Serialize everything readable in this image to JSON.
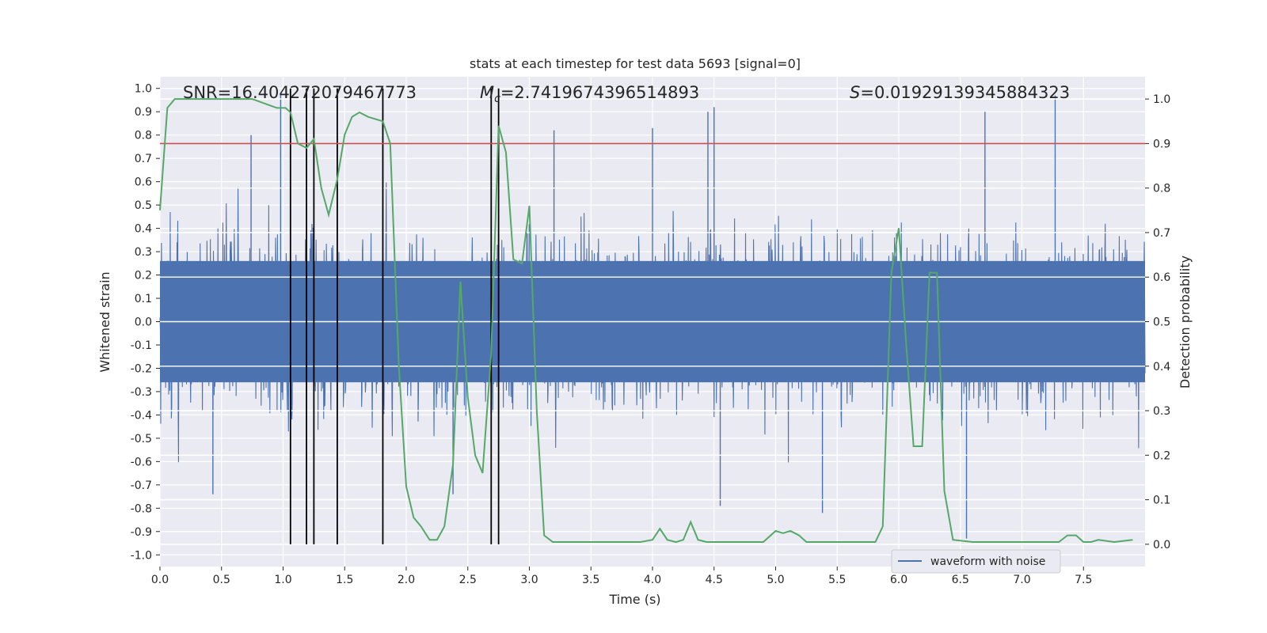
{
  "chart_data": {
    "type": "line",
    "title": "stats at each timestep for test data 5693 [signal=0]",
    "xlabel": "Time (s)",
    "ylabel_left": "Whitened strain",
    "ylabel_right": "Detection probability",
    "xlim": [
      0.0,
      8.0
    ],
    "ylim_left": [
      -1.05,
      1.05
    ],
    "ylim_right": [
      -0.05,
      1.05
    ],
    "x_ticks": [
      "0.0",
      "0.5",
      "1.0",
      "1.5",
      "2.0",
      "2.5",
      "3.0",
      "3.5",
      "4.0",
      "4.5",
      "5.0",
      "5.5",
      "6.0",
      "6.5",
      "7.0",
      "7.5"
    ],
    "y_ticks_left": [
      "-1.0",
      "-0.9",
      "-0.8",
      "-0.7",
      "-0.6",
      "-0.5",
      "-0.4",
      "-0.3",
      "-0.2",
      "-0.1",
      "0.0",
      "0.1",
      "0.2",
      "0.3",
      "0.4",
      "0.5",
      "0.6",
      "0.7",
      "0.8",
      "0.9",
      "1.0"
    ],
    "y_ticks_right": [
      "0.0",
      "0.1",
      "0.2",
      "0.3",
      "0.4",
      "0.5",
      "0.6",
      "0.7",
      "0.8",
      "0.9",
      "1.0"
    ],
    "grid": true,
    "legend_position": "lower-right",
    "annotations": {
      "snr": "SNR=16.404272079467773",
      "mc_symbol": "M",
      "mc_sub": "c",
      "mc_value": "=2.7419674396514893",
      "s_symbol": "S",
      "s_value": "=0.01929139345884323"
    },
    "threshold_right": 0.9,
    "event_times": [
      1.06,
      1.19,
      1.25,
      1.44,
      1.81,
      2.69,
      2.75
    ],
    "series": [
      {
        "name": "waveform with noise",
        "color": "#4c72b0",
        "x_range": [
          0.0,
          8.0
        ],
        "envelope": {
          "typical_amplitude": 0.42,
          "peak_amplitude": 0.98,
          "min_value": -0.93
        },
        "peaks": [
          {
            "x": 0.98,
            "y": 0.98
          },
          {
            "x": 1.81,
            "y": 0.93
          },
          {
            "x": 2.69,
            "y": 0.76
          },
          {
            "x": 3.2,
            "y": 0.82
          },
          {
            "x": 4.0,
            "y": 0.83
          },
          {
            "x": 4.45,
            "y": 0.9
          },
          {
            "x": 4.5,
            "y": 0.92
          },
          {
            "x": 6.7,
            "y": 0.9
          },
          {
            "x": 7.27,
            "y": 0.97
          },
          {
            "x": 0.74,
            "y": 0.8
          },
          {
            "x": 6.55,
            "y": -0.93
          },
          {
            "x": 2.38,
            "y": -0.74
          },
          {
            "x": 0.43,
            "y": -0.74
          },
          {
            "x": 5.38,
            "y": -0.82
          },
          {
            "x": 4.55,
            "y": -0.79
          }
        ]
      },
      {
        "name": "detection probability",
        "color": "#55a868",
        "axis": "right",
        "x": [
          0.0,
          0.06,
          0.12,
          0.3,
          0.6,
          0.75,
          0.85,
          0.95,
          1.02,
          1.06,
          1.12,
          1.19,
          1.25,
          1.31,
          1.37,
          1.44,
          1.5,
          1.56,
          1.62,
          1.69,
          1.81,
          1.87,
          1.94,
          2.0,
          2.06,
          2.12,
          2.19,
          2.25,
          2.31,
          2.38,
          2.44,
          2.5,
          2.56,
          2.62,
          2.69,
          2.75,
          2.81,
          2.87,
          2.94,
          3.0,
          3.06,
          3.12,
          3.19,
          3.3,
          3.5,
          3.7,
          3.9,
          4.0,
          4.06,
          4.12,
          4.19,
          4.25,
          4.31,
          4.37,
          4.44,
          4.5,
          4.7,
          4.9,
          5.0,
          5.06,
          5.12,
          5.19,
          5.25,
          5.31,
          5.37,
          5.5,
          5.7,
          5.81,
          5.87,
          5.94,
          6.0,
          6.06,
          6.12,
          6.19,
          6.25,
          6.31,
          6.37,
          6.44,
          6.6,
          6.8,
          7.0,
          7.2,
          7.3,
          7.37,
          7.44,
          7.5,
          7.56,
          7.62,
          7.75,
          7.9
        ],
        "y": [
          0.75,
          0.98,
          1.0,
          1.0,
          1.0,
          1.0,
          0.99,
          0.98,
          0.98,
          0.97,
          0.9,
          0.89,
          0.91,
          0.8,
          0.74,
          0.82,
          0.92,
          0.96,
          0.97,
          0.96,
          0.95,
          0.9,
          0.4,
          0.13,
          0.06,
          0.04,
          0.01,
          0.01,
          0.04,
          0.18,
          0.59,
          0.33,
          0.2,
          0.16,
          0.43,
          0.94,
          0.88,
          0.64,
          0.63,
          0.76,
          0.3,
          0.02,
          0.005,
          0.005,
          0.005,
          0.005,
          0.005,
          0.01,
          0.035,
          0.01,
          0.005,
          0.01,
          0.05,
          0.01,
          0.005,
          0.005,
          0.005,
          0.005,
          0.03,
          0.025,
          0.03,
          0.02,
          0.005,
          0.005,
          0.005,
          0.005,
          0.005,
          0.005,
          0.04,
          0.61,
          0.71,
          0.45,
          0.22,
          0.22,
          0.61,
          0.61,
          0.12,
          0.01,
          0.005,
          0.005,
          0.005,
          0.005,
          0.005,
          0.02,
          0.02,
          0.005,
          0.005,
          0.01,
          0.005,
          0.01
        ]
      }
    ]
  }
}
